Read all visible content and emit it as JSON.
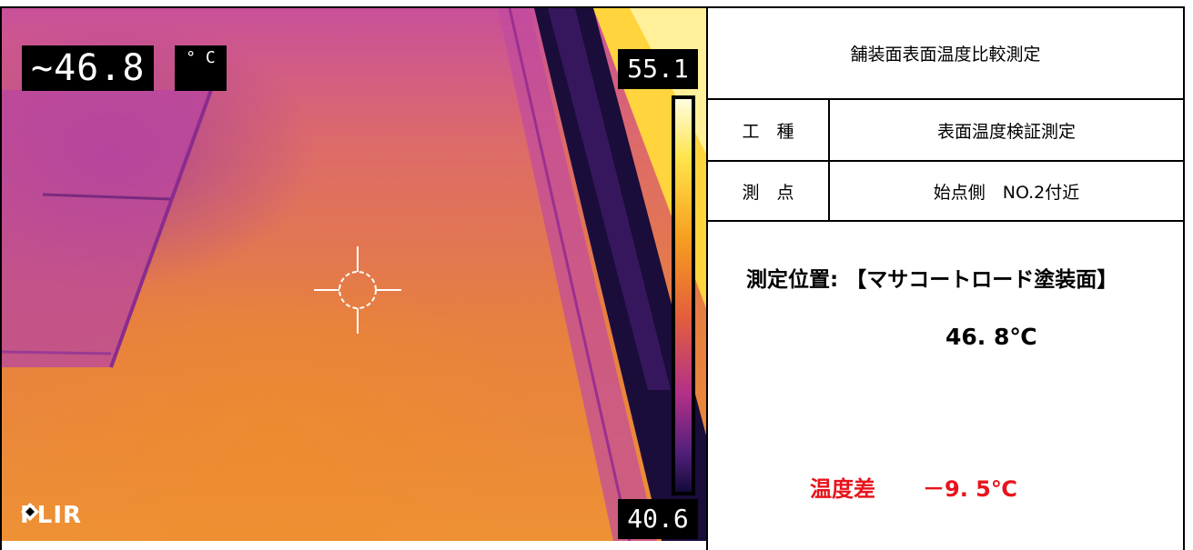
{
  "thermal_image": {
    "spot_temperature": "~46.8",
    "unit": "° C",
    "scale_max": "55.1",
    "scale_min": "40.6",
    "brand": "FLIR",
    "crosshair_icon": "crosshair-icon",
    "logo_icon": "flir-logo-icon"
  },
  "info_table": {
    "title": "舗装面表面温度比較測定",
    "kind_label": "工　種",
    "kind_value": "表面温度検証測定",
    "point_label": "測　点",
    "point_value": "始点側　NO.2付近",
    "measure_position": "測定位置: 【マサコートロード塗装面】",
    "measure_temperature": "46. 8℃",
    "diff_label": "温度差",
    "diff_value": "－9. 5℃"
  },
  "colors": {
    "diff_text": "#e8141c"
  }
}
